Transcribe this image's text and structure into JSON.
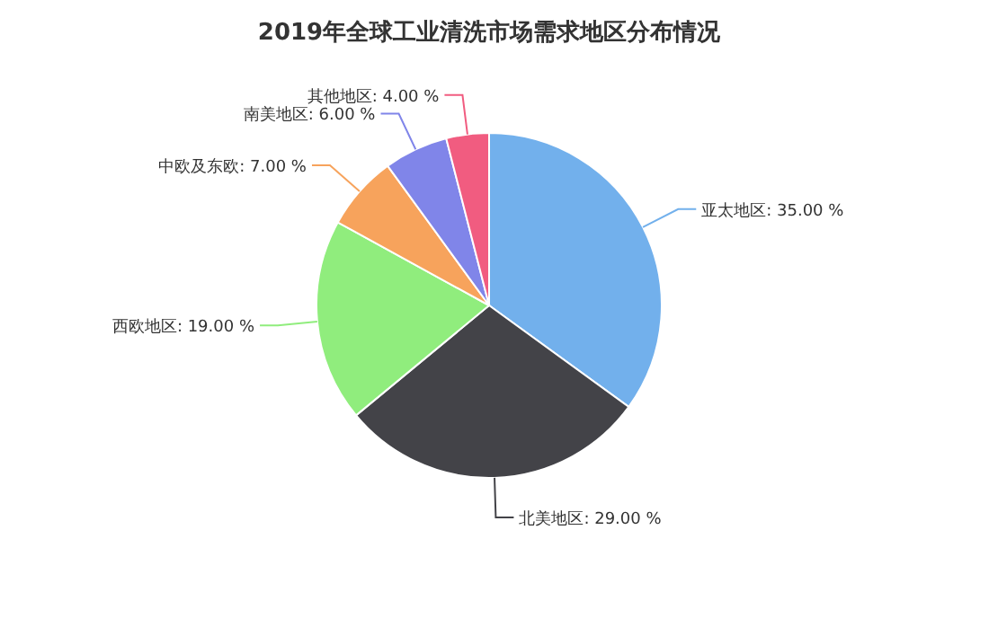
{
  "chart_data": {
    "type": "pie",
    "title": "2019年全球工业清洗市场需求地区分布情况",
    "categories": [
      "亚太地区",
      "北美地区",
      "西欧地区",
      "中欧及东欧",
      "南美地区",
      "其他地区"
    ],
    "values": [
      35,
      29,
      19,
      7,
      6,
      4
    ],
    "colors": [
      "#72b0ec",
      "#434348",
      "#90ed7d",
      "#f7a35c",
      "#8085e9",
      "#f15c80"
    ],
    "value_labels": [
      "35.00 %",
      "29.00 %",
      "19.00 %",
      "7.00 %",
      "6.00 %",
      "4.00 %"
    ]
  }
}
